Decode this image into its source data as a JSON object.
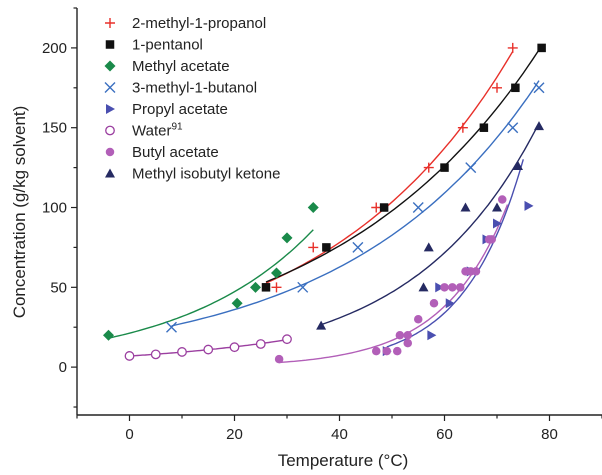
{
  "chart_data": {
    "type": "scatter",
    "title": "",
    "xlabel": "Temperature (°C)",
    "ylabel": "Concentration (g/kg solvent)",
    "xlim": [
      -10,
      90
    ],
    "ylim": [
      -30,
      225
    ],
    "x_ticks": [
      0,
      20,
      40,
      60,
      80
    ],
    "y_ticks": [
      0,
      50,
      100,
      150,
      200
    ],
    "x_tick_labels": [
      "0",
      "20",
      "40",
      "60",
      "80"
    ],
    "y_tick_labels": [
      "0",
      "50",
      "100",
      "150",
      "200"
    ],
    "grid": false,
    "legend_position": "top-left",
    "series": [
      {
        "name": "2-methyl-1-propanol",
        "marker": "plus",
        "color": "#e8302a",
        "x": [
          28,
          35,
          47,
          57,
          63.5,
          70,
          73
        ],
        "y": [
          50,
          75,
          100,
          125,
          150,
          175,
          200
        ],
        "fit_x": [
          26,
          73
        ]
      },
      {
        "name": "1-pentanol",
        "marker": "square",
        "color": "#111111",
        "x": [
          26,
          37.5,
          48.5,
          60,
          67.5,
          73.5,
          78.5
        ],
        "y": [
          50,
          75,
          100,
          125,
          150,
          175,
          200
        ],
        "fit_x": [
          26,
          78.5
        ]
      },
      {
        "name": "Methyl acetate",
        "marker": "diamond",
        "color": "#1a8a4a",
        "x": [
          -4,
          20.5,
          24,
          28,
          30,
          35
        ],
        "y": [
          20,
          40,
          50,
          59,
          81,
          100
        ],
        "fit_x": [
          -4,
          35
        ]
      },
      {
        "name": "3-methyl-1-butanol",
        "marker": "cross",
        "color": "#3a6fc0",
        "x": [
          8,
          33,
          43.5,
          55,
          65,
          73,
          78
        ],
        "y": [
          25,
          50,
          75,
          100,
          125,
          150,
          175
        ],
        "fit_x": [
          8,
          78
        ]
      },
      {
        "name": "Propyl acetate",
        "marker": "triangle-right",
        "color": "#4a4fb0",
        "x": [
          49,
          57.5,
          59,
          61,
          65,
          68,
          70,
          76
        ],
        "y": [
          10,
          20,
          50,
          40,
          60,
          80,
          90,
          101
        ],
        "fit_x": [
          49,
          75
        ]
      },
      {
        "name": "Water",
        "name_superscript": "91",
        "marker": "circle-open",
        "color": "#9b3fa0",
        "x": [
          0,
          5,
          10,
          15,
          20,
          25,
          30
        ],
        "y": [
          7,
          8,
          9.5,
          11,
          12.5,
          14.5,
          17.5
        ],
        "fit_x": [
          0,
          30
        ]
      },
      {
        "name": "Butyl acetate",
        "marker": "circle",
        "color": "#b25fb8",
        "x": [
          28.5,
          47,
          49,
          51,
          51.5,
          53,
          53,
          55,
          58,
          60,
          61.5,
          63,
          64,
          65,
          66,
          68.5,
          69,
          71
        ],
        "y": [
          5,
          10,
          10,
          10,
          20,
          15,
          20,
          30,
          40,
          50,
          50,
          50,
          60,
          60,
          60,
          80,
          80,
          105
        ],
        "fit_x": [
          28.5,
          72
        ]
      },
      {
        "name": "Methyl isobutyl ketone",
        "marker": "triangle-up",
        "color": "#252a62",
        "x": [
          36.5,
          56,
          57,
          64,
          70,
          74,
          78
        ],
        "y": [
          26,
          50,
          75,
          100,
          100,
          126,
          151
        ],
        "fit_x": [
          36.5,
          78
        ]
      }
    ]
  }
}
